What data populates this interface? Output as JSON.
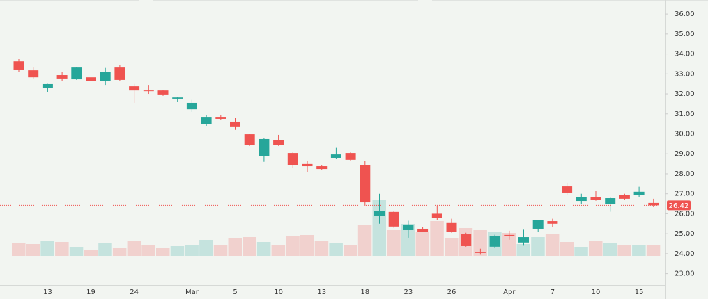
{
  "chart_data": {
    "type": "candlestick",
    "categories": [
      null,
      null,
      "13",
      null,
      null,
      "19",
      null,
      null,
      "24",
      null,
      null,
      null,
      "Mar",
      null,
      null,
      "5",
      null,
      null,
      "10",
      null,
      null,
      "13",
      null,
      null,
      "18",
      null,
      null,
      "23",
      null,
      null,
      "26",
      null,
      null,
      null,
      "Apr",
      null,
      null,
      "7",
      null,
      null,
      "10",
      null,
      null,
      "15",
      null
    ],
    "open": [
      33.63,
      33.18,
      32.31,
      32.94,
      32.73,
      32.83,
      32.66,
      33.32,
      32.38,
      32.17,
      32.17,
      31.76,
      31.23,
      30.47,
      30.85,
      30.61,
      29.98,
      28.9,
      29.7,
      29.04,
      28.49,
      28.38,
      28.8,
      29.04,
      28.45,
      25.88,
      26.09,
      25.18,
      25.25,
      26.0,
      25.57,
      24.97,
      24.07,
      24.35,
      24.94,
      24.56,
      25.25,
      25.63,
      27.37,
      26.64,
      26.85,
      26.5,
      26.92,
      26.92,
      26.54
    ],
    "high": [
      33.74,
      33.32,
      32.5,
      33.08,
      33.35,
      32.97,
      33.3,
      33.45,
      32.5,
      32.45,
      32.2,
      31.85,
      31.7,
      30.95,
      30.95,
      30.8,
      30.0,
      29.8,
      29.95,
      29.1,
      28.65,
      28.45,
      29.3,
      29.1,
      28.65,
      27.0,
      26.15,
      25.65,
      25.35,
      26.4,
      25.75,
      25.05,
      24.25,
      24.95,
      25.15,
      25.2,
      25.7,
      25.75,
      27.55,
      27.0,
      27.15,
      26.85,
      27.0,
      27.35,
      26.75
    ],
    "low": [
      33.08,
      32.77,
      32.1,
      32.63,
      32.7,
      32.57,
      32.45,
      32.65,
      31.55,
      32.0,
      31.9,
      31.6,
      31.1,
      30.4,
      30.7,
      30.2,
      29.4,
      28.6,
      29.4,
      28.3,
      28.1,
      28.2,
      28.75,
      28.65,
      26.4,
      25.5,
      25.3,
      24.8,
      25.1,
      25.7,
      25.05,
      24.35,
      23.95,
      24.3,
      24.7,
      24.4,
      25.1,
      25.35,
      26.95,
      26.5,
      26.65,
      26.1,
      26.7,
      26.85,
      26.35
    ],
    "close": [
      33.22,
      32.83,
      32.49,
      32.77,
      33.32,
      32.66,
      33.08,
      32.7,
      32.17,
      32.14,
      31.97,
      31.82,
      31.55,
      30.85,
      30.75,
      30.37,
      29.43,
      29.74,
      29.46,
      28.45,
      28.38,
      28.24,
      28.97,
      28.7,
      26.57,
      26.12,
      25.36,
      25.46,
      25.11,
      25.78,
      25.11,
      24.38,
      24.05,
      24.87,
      24.87,
      24.83,
      25.67,
      25.5,
      27.06,
      26.82,
      26.71,
      26.78,
      26.75,
      27.1,
      26.42
    ],
    "volume": [
      19,
      17,
      22,
      20,
      13,
      9,
      18,
      12,
      21,
      15,
      11,
      14,
      15,
      23,
      16,
      26,
      27,
      20,
      15,
      29,
      30,
      22,
      19,
      16,
      45,
      80,
      37,
      46,
      35,
      50,
      26,
      40,
      37,
      34,
      33,
      17,
      27,
      32,
      20,
      13,
      21,
      18,
      16,
      15,
      15
    ],
    "up_color": "#26a69a",
    "down_color": "#ef5350",
    "ylim": [
      22.43,
      36.7
    ],
    "yticks": [
      {
        "value": 23,
        "label": "23.00"
      },
      {
        "value": 24,
        "label": "24.00"
      },
      {
        "value": 25,
        "label": "25.00"
      },
      {
        "value": 26,
        "label": "26.00"
      },
      {
        "value": 27,
        "label": "27.00"
      },
      {
        "value": 28,
        "label": "28.00"
      },
      {
        "value": 29,
        "label": "29.00"
      },
      {
        "value": 30,
        "label": "30.00"
      },
      {
        "value": 31,
        "label": "31.00"
      },
      {
        "value": 32,
        "label": "32.00"
      },
      {
        "value": 33,
        "label": "33.00"
      },
      {
        "value": 34,
        "label": "34.00"
      },
      {
        "value": 35,
        "label": "35.00"
      },
      {
        "value": 36,
        "label": "36.00"
      }
    ],
    "last_value": 26.42
  }
}
